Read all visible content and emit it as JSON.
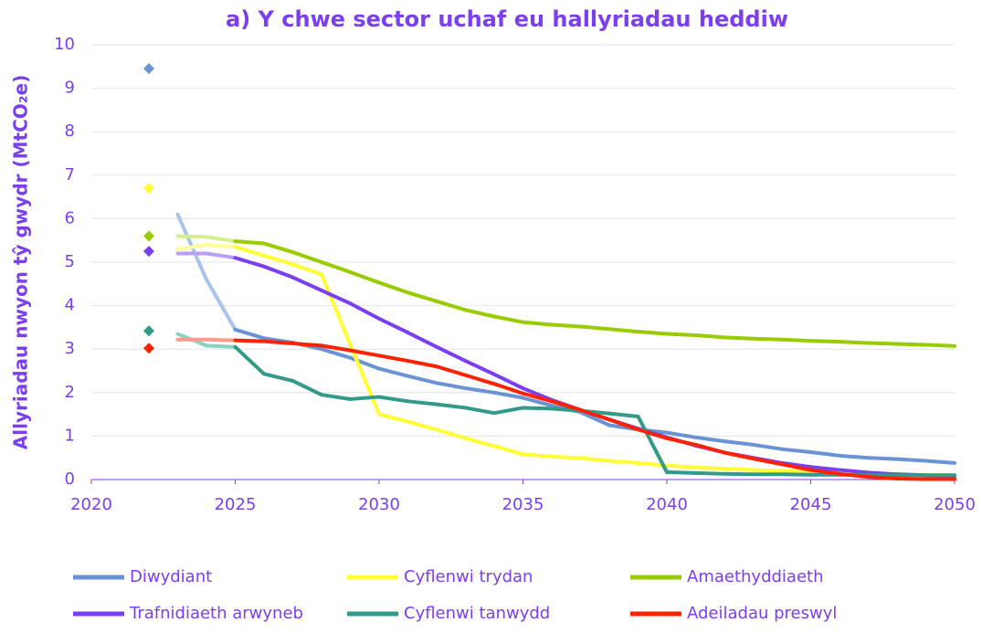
{
  "chart_data": {
    "type": "line",
    "title": "a) Y chwe sector uchaf eu hallyriadau heddiw",
    "ylabel": "Allyriadau nwyon tŷ gwydr (MtCO₂e)",
    "x": [
      2022,
      2023,
      2024,
      2025,
      2026,
      2027,
      2028,
      2029,
      2030,
      2031,
      2032,
      2033,
      2034,
      2035,
      2036,
      2037,
      2038,
      2039,
      2040,
      2041,
      2042,
      2043,
      2044,
      2045,
      2046,
      2047,
      2048,
      2049,
      2050
    ],
    "xlim": [
      2020,
      2050
    ],
    "xticks": [
      2020,
      2025,
      2030,
      2035,
      2040,
      2045,
      2050
    ],
    "ylim": [
      0,
      10
    ],
    "yticks": [
      0,
      1,
      2,
      3,
      4,
      5,
      6,
      7,
      8,
      9,
      10
    ],
    "grid": true,
    "legend": "bottom",
    "series": [
      {
        "name": "Diwydiant",
        "color": "#6a93d6",
        "light_color": "#a9c4ea",
        "values": [
          9.45,
          6.1,
          4.6,
          3.45,
          3.25,
          3.15,
          3.0,
          2.8,
          2.55,
          2.38,
          2.22,
          2.1,
          2.0,
          1.88,
          1.7,
          1.55,
          1.25,
          1.15,
          1.08,
          0.97,
          0.88,
          0.8,
          0.7,
          0.63,
          0.55,
          0.5,
          0.47,
          0.43,
          0.38
        ]
      },
      {
        "name": "Cyflenwi trydan",
        "color": "#ffff33",
        "light_color": "#ffff99",
        "values": [
          6.7,
          5.3,
          5.4,
          5.35,
          5.15,
          4.95,
          4.72,
          3.1,
          1.5,
          1.33,
          1.15,
          0.95,
          0.77,
          0.58,
          0.53,
          0.49,
          0.43,
          0.38,
          0.32,
          0.28,
          0.25,
          0.22,
          0.2,
          0.17,
          0.15,
          0.13,
          0.12,
          0.11,
          0.1
        ]
      },
      {
        "name": "Amaethyddiaeth",
        "color": "#99cc00",
        "light_color": "#d4f08c",
        "values": [
          5.6,
          5.6,
          5.58,
          5.48,
          5.43,
          5.23,
          5.0,
          4.77,
          4.53,
          4.3,
          4.1,
          3.9,
          3.75,
          3.62,
          3.56,
          3.52,
          3.46,
          3.4,
          3.35,
          3.32,
          3.27,
          3.24,
          3.22,
          3.19,
          3.17,
          3.14,
          3.12,
          3.1,
          3.07
        ]
      },
      {
        "name": "Trafnidiaeth arwyneb",
        "color": "#7b3ff2",
        "light_color": "#b9a0f5",
        "values": [
          5.25,
          5.2,
          5.2,
          5.1,
          4.9,
          4.65,
          4.35,
          4.05,
          3.7,
          3.38,
          3.05,
          2.73,
          2.42,
          2.1,
          1.83,
          1.6,
          1.38,
          1.17,
          0.97,
          0.78,
          0.62,
          0.5,
          0.38,
          0.29,
          0.22,
          0.16,
          0.12,
          0.1,
          0.08
        ]
      },
      {
        "name": "Cyflenwi tanwydd",
        "color": "#339988",
        "light_color": "#8ad2c2",
        "values": [
          3.42,
          3.35,
          3.08,
          3.05,
          2.43,
          2.27,
          1.95,
          1.85,
          1.9,
          1.8,
          1.73,
          1.65,
          1.53,
          1.65,
          1.63,
          1.58,
          1.52,
          1.45,
          0.17,
          0.15,
          0.13,
          0.12,
          0.12,
          0.11,
          0.11,
          0.1,
          0.1,
          0.1,
          0.1
        ]
      },
      {
        "name": "Adeiladau preswyl",
        "color": "#ff2200",
        "light_color": "#ff9a8a",
        "values": [
          3.02,
          3.22,
          3.22,
          3.2,
          3.18,
          3.13,
          3.08,
          2.97,
          2.85,
          2.73,
          2.6,
          2.4,
          2.2,
          1.98,
          1.8,
          1.6,
          1.38,
          1.15,
          0.95,
          0.8,
          0.62,
          0.48,
          0.35,
          0.22,
          0.13,
          0.06,
          0.02,
          0.01,
          0.01
        ]
      }
    ]
  }
}
